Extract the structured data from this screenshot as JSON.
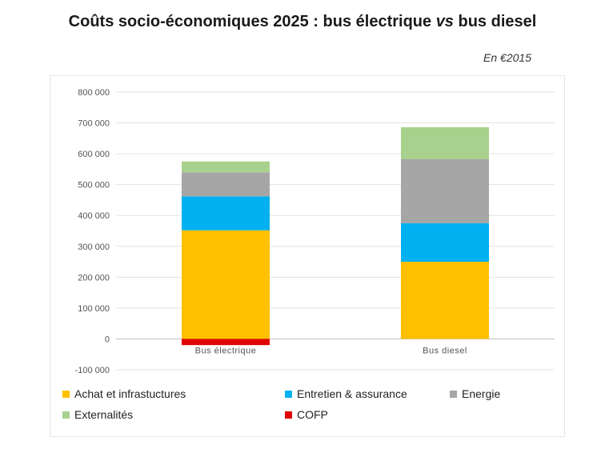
{
  "title_parts": {
    "before": "Coûts socio-économiques 2025 : bus électrique ",
    "italic": "vs",
    "after": " bus diesel"
  },
  "unit_label": "En €2015",
  "chart_data": {
    "type": "bar",
    "stacked": true,
    "title": "Coûts socio-économiques 2025 : bus électrique vs bus diesel",
    "categories": [
      "Bus électrique",
      "Bus diesel"
    ],
    "series": [
      {
        "name": "Achat et infrastuctures",
        "color": "#FFC000",
        "values": [
          352000,
          250000
        ]
      },
      {
        "name": "Entretien & assurance",
        "color": "#00B0F0",
        "values": [
          110000,
          125000
        ]
      },
      {
        "name": "Energie",
        "color": "#A6A6A6",
        "values": [
          78000,
          208000
        ]
      },
      {
        "name": "Externalités",
        "color": "#A9D18E",
        "values": [
          35000,
          103000
        ]
      },
      {
        "name": "COFP",
        "color": "#E00000",
        "values": [
          -20000,
          0
        ]
      }
    ],
    "yticks": [
      "-100 000",
      "0",
      "100 000",
      "200 000",
      "300 000",
      "400 000",
      "500 000",
      "600 000",
      "700 000",
      "800 000"
    ],
    "ylim": [
      -100000,
      800000
    ],
    "grid": true,
    "legend_position": "bottom"
  }
}
